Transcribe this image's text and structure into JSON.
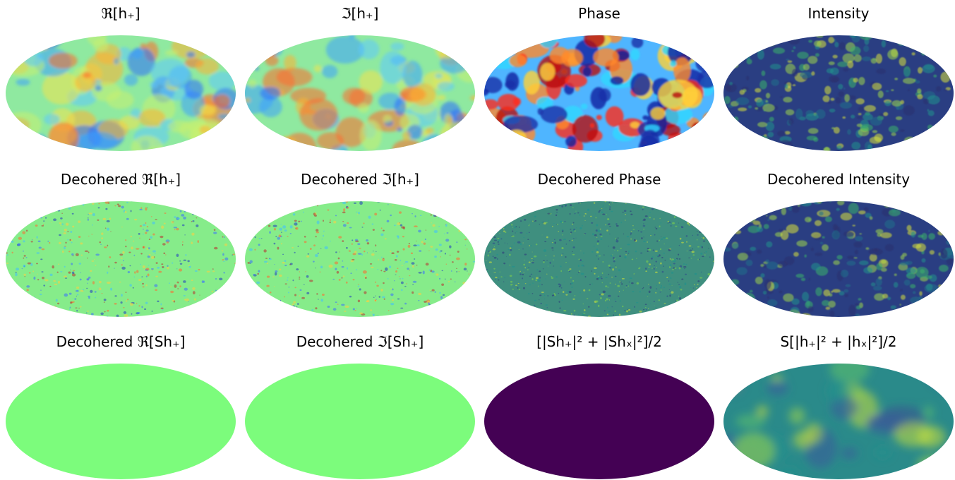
{
  "figure": {
    "rows": [
      [
        {
          "title": "ℜ[h₊]",
          "style": "jet-smooth"
        },
        {
          "title": "ℑ[h₊]",
          "style": "jet-smooth"
        },
        {
          "title": "Phase",
          "style": "jet-phase"
        },
        {
          "title": "Intensity",
          "style": "viridis-intensity"
        }
      ],
      [
        {
          "title": "Decohered ℜ[h₊]",
          "style": "jet-noisy"
        },
        {
          "title": "Decohered ℑ[h₊]",
          "style": "jet-noisy"
        },
        {
          "title": "Decohered Phase",
          "style": "viridis-noise"
        },
        {
          "title": "Decohered Intensity",
          "style": "viridis-intensity"
        }
      ],
      [
        {
          "title": "Decohered ℜ[Sh₊]",
          "style": "flat-green"
        },
        {
          "title": "Decohered ℑ[Sh₊]",
          "style": "flat-green"
        },
        {
          "title": "[|Sh₊|² + |Shₓ|²]/2",
          "style": "flat-purple"
        },
        {
          "title": "S[|h₊|² + |hₓ|²]/2",
          "style": "viridis-smooth"
        }
      ]
    ],
    "colors": {
      "flat_green": "#7cfc7c",
      "flat_purple": "#440154",
      "jet_background": "#8fe9a0",
      "viridis_dark": "#2b3a7a"
    }
  }
}
